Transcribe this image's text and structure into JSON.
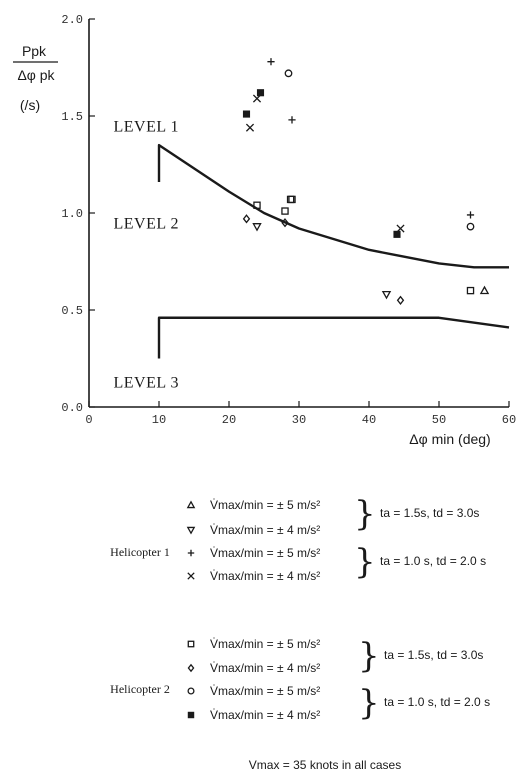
{
  "chart_data": {
    "type": "scatter",
    "ylabel_top": "Ppk",
    "ylabel_bottom": "Δφ pk",
    "yunit": "(/s)",
    "xlabel": "Δφ min (deg)",
    "xlim": [
      0,
      60
    ],
    "ylim": [
      0.0,
      2.0
    ],
    "xticks": [
      "0",
      "10",
      "20",
      "30",
      "40",
      "50",
      "60"
    ],
    "yticks": [
      "0.0",
      "0.5",
      "1.0",
      "1.5",
      "2.0"
    ],
    "level_labels": [
      {
        "text": "LEVEL 1",
        "x": 3.5,
        "y": 1.42
      },
      {
        "text": "LEVEL 2",
        "x": 3.5,
        "y": 0.92
      },
      {
        "text": "LEVEL 3",
        "x": 3.5,
        "y": 0.1
      }
    ],
    "boundaries": [
      {
        "name": "level1-2",
        "points": [
          [
            10,
            1.16
          ],
          [
            10,
            1.35
          ],
          [
            15,
            1.23
          ],
          [
            20,
            1.11
          ],
          [
            25,
            1.0
          ],
          [
            30,
            0.92
          ],
          [
            40,
            0.81
          ],
          [
            50,
            0.74
          ],
          [
            55,
            0.72
          ],
          [
            60,
            0.72
          ]
        ]
      },
      {
        "name": "level2-3",
        "points": [
          [
            10,
            0.25
          ],
          [
            10,
            0.46
          ],
          [
            50,
            0.46
          ],
          [
            60,
            0.41
          ]
        ]
      }
    ],
    "series": [
      {
        "marker": "triangle-up",
        "points": [
          [
            56.5,
            0.6
          ]
        ]
      },
      {
        "marker": "triangle-down",
        "points": [
          [
            24.0,
            0.93
          ],
          [
            42.5,
            0.58
          ]
        ]
      },
      {
        "marker": "plus",
        "points": [
          [
            26.0,
            1.78
          ],
          [
            29.0,
            1.48
          ],
          [
            54.5,
            0.99
          ]
        ]
      },
      {
        "marker": "cross",
        "points": [
          [
            23.0,
            1.44
          ],
          [
            24.0,
            1.59
          ],
          [
            44.5,
            0.92
          ]
        ]
      },
      {
        "marker": "square-open",
        "points": [
          [
            24.0,
            1.04
          ],
          [
            28.0,
            1.01
          ],
          [
            28.8,
            1.07
          ],
          [
            29.0,
            1.07
          ],
          [
            54.5,
            0.6
          ]
        ]
      },
      {
        "marker": "diamond-open",
        "points": [
          [
            22.5,
            0.97
          ],
          [
            28.0,
            0.95
          ],
          [
            44.5,
            0.55
          ]
        ]
      },
      {
        "marker": "circle-open",
        "points": [
          [
            28.5,
            1.72
          ],
          [
            54.5,
            0.93
          ]
        ]
      },
      {
        "marker": "square-filled",
        "points": [
          [
            22.5,
            1.51
          ],
          [
            24.5,
            1.62
          ],
          [
            44.0,
            0.89
          ]
        ]
      }
    ]
  },
  "legend": {
    "helicopter1": {
      "name": "Helicopter 1",
      "rows": [
        {
          "marker": "triangle-up",
          "vlabel": "V̇max/min = ± 5 m/s²"
        },
        {
          "marker": "triangle-down",
          "vlabel": "V̇max/min = ± 4 m/s²"
        },
        {
          "marker": "plus",
          "vlabel": "V̇max/min = ± 5 m/s²"
        },
        {
          "marker": "cross",
          "vlabel": "V̇max/min = ± 4 m/s²"
        }
      ],
      "timing": [
        "ta = 1.5s,   td = 3.0s",
        "ta = 1.0 s,   td = 2.0 s"
      ]
    },
    "helicopter2": {
      "name": "Helicopter 2",
      "rows": [
        {
          "marker": "square-open",
          "vlabel": "V̇max/min = ± 5 m/s²"
        },
        {
          "marker": "diamond-open",
          "vlabel": "V̇max/min = ± 4 m/s²"
        },
        {
          "marker": "circle-open",
          "vlabel": "V̇max/min = ± 5 m/s²"
        },
        {
          "marker": "square-filled",
          "vlabel": "V̇max/min = ± 4 m/s²"
        }
      ],
      "timing": [
        "ta = 1.5s,   td = 3.0s",
        "ta = 1.0 s,   td = 2.0 s"
      ]
    },
    "footnote": "Vmax = 35 knots in all cases"
  }
}
